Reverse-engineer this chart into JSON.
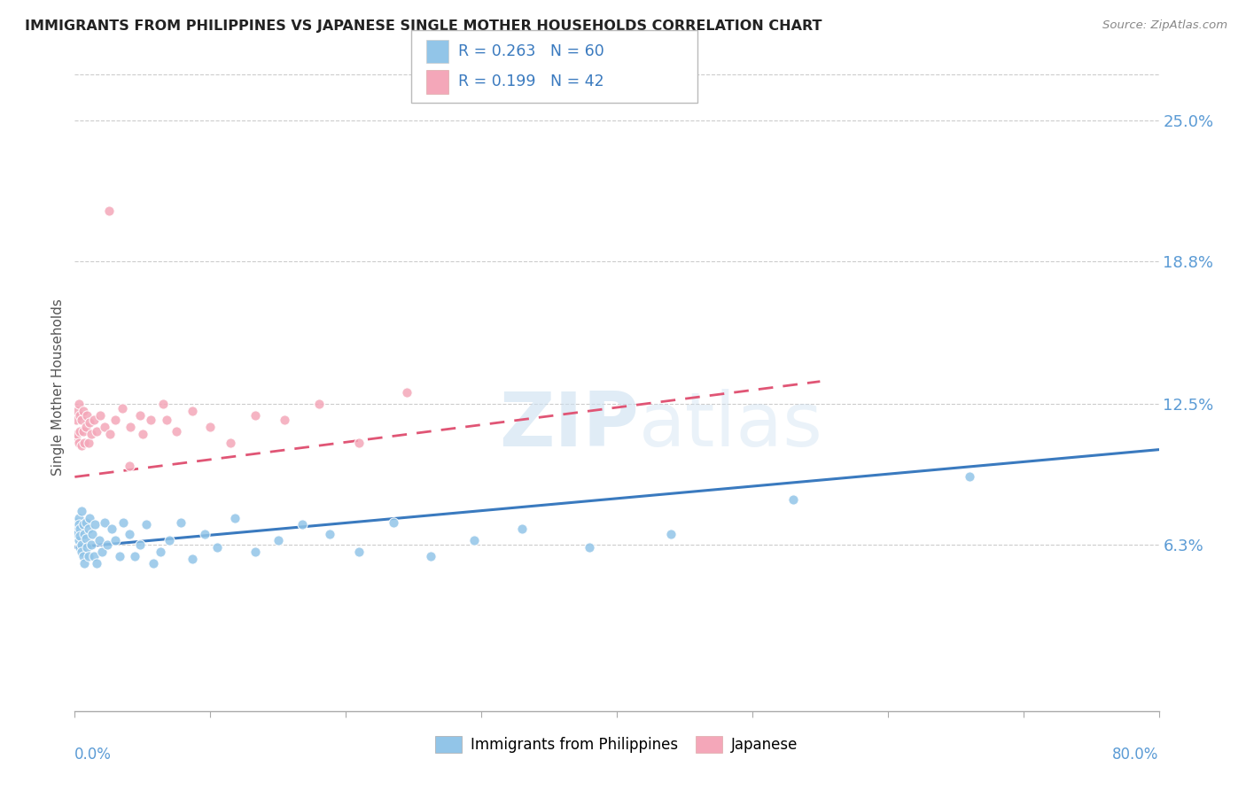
{
  "title": "IMMIGRANTS FROM PHILIPPINES VS JAPANESE SINGLE MOTHER HOUSEHOLDS CORRELATION CHART",
  "source": "Source: ZipAtlas.com",
  "ylabel": "Single Mother Households",
  "y_ticks": [
    0.063,
    0.125,
    0.188,
    0.25
  ],
  "y_tick_labels": [
    "6.3%",
    "12.5%",
    "18.8%",
    "25.0%"
  ],
  "x_min": 0.0,
  "x_max": 0.8,
  "y_min": -0.01,
  "y_max": 0.275,
  "blue_color": "#92c5e8",
  "pink_color": "#f4a7b9",
  "blue_line_color": "#3a7abf",
  "pink_line_color": "#e05575",
  "r_blue": 0.263,
  "n_blue": 60,
  "r_pink": 0.199,
  "n_pink": 42,
  "watermark_zip": "ZIP",
  "watermark_atlas": "atlas",
  "blue_x": [
    0.001,
    0.002,
    0.002,
    0.003,
    0.003,
    0.003,
    0.004,
    0.004,
    0.004,
    0.005,
    0.005,
    0.005,
    0.006,
    0.006,
    0.007,
    0.007,
    0.008,
    0.008,
    0.009,
    0.01,
    0.01,
    0.011,
    0.012,
    0.013,
    0.014,
    0.015,
    0.016,
    0.018,
    0.02,
    0.022,
    0.024,
    0.027,
    0.03,
    0.033,
    0.036,
    0.04,
    0.044,
    0.048,
    0.053,
    0.058,
    0.063,
    0.07,
    0.078,
    0.087,
    0.096,
    0.105,
    0.118,
    0.133,
    0.15,
    0.168,
    0.188,
    0.21,
    0.235,
    0.263,
    0.295,
    0.33,
    0.38,
    0.44,
    0.53,
    0.66
  ],
  "blue_y": [
    0.073,
    0.07,
    0.068,
    0.075,
    0.072,
    0.065,
    0.07,
    0.067,
    0.062,
    0.078,
    0.063,
    0.06,
    0.072,
    0.058,
    0.068,
    0.055,
    0.066,
    0.073,
    0.062,
    0.07,
    0.058,
    0.075,
    0.063,
    0.068,
    0.058,
    0.072,
    0.055,
    0.065,
    0.06,
    0.073,
    0.063,
    0.07,
    0.065,
    0.058,
    0.073,
    0.068,
    0.058,
    0.063,
    0.072,
    0.055,
    0.06,
    0.065,
    0.073,
    0.057,
    0.068,
    0.062,
    0.075,
    0.06,
    0.065,
    0.072,
    0.068,
    0.06,
    0.073,
    0.058,
    0.065,
    0.07,
    0.062,
    0.068,
    0.083,
    0.093
  ],
  "pink_x": [
    0.001,
    0.001,
    0.002,
    0.002,
    0.003,
    0.003,
    0.004,
    0.004,
    0.005,
    0.005,
    0.006,
    0.006,
    0.007,
    0.008,
    0.009,
    0.01,
    0.011,
    0.012,
    0.014,
    0.016,
    0.019,
    0.022,
    0.026,
    0.03,
    0.035,
    0.041,
    0.048,
    0.056,
    0.065,
    0.075,
    0.087,
    0.1,
    0.115,
    0.133,
    0.155,
    0.18,
    0.21,
    0.245,
    0.05,
    0.068,
    0.025,
    0.04
  ],
  "pink_y": [
    0.11,
    0.118,
    0.112,
    0.122,
    0.108,
    0.125,
    0.113,
    0.12,
    0.107,
    0.118,
    0.113,
    0.122,
    0.108,
    0.115,
    0.12,
    0.108,
    0.117,
    0.112,
    0.118,
    0.113,
    0.12,
    0.115,
    0.112,
    0.118,
    0.123,
    0.115,
    0.12,
    0.118,
    0.125,
    0.113,
    0.122,
    0.115,
    0.108,
    0.12,
    0.118,
    0.125,
    0.108,
    0.13,
    0.112,
    0.118,
    0.21,
    0.098
  ],
  "blue_trend_x": [
    0.0,
    0.8
  ],
  "blue_trend_y": [
    0.062,
    0.105
  ],
  "pink_trend_x": [
    0.0,
    0.55
  ],
  "pink_trend_y": [
    0.093,
    0.135
  ]
}
